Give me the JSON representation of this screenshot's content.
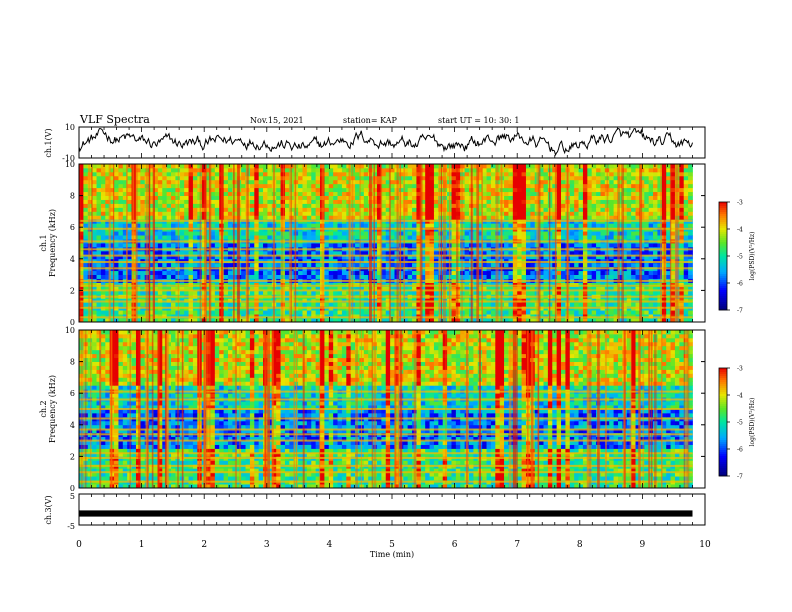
{
  "header": {
    "title": "VLF Spectra",
    "date": "Nov.15, 2021",
    "station": "station= KAP",
    "start": "start  UT  =   10: 30: 1"
  },
  "chart_data": [
    {
      "type": "line",
      "ylabel": "ch.1(V)",
      "ylim": [
        -10,
        10
      ],
      "yticks": [
        "10",
        "-10"
      ],
      "xlim": [
        0,
        10
      ],
      "series": [
        {
          "values_note_free": true,
          "color": "#000000"
        }
      ]
    },
    {
      "type": "heatmap",
      "ylabel_line1": "ch.1",
      "ylabel_line2": "Frequency  (kHz)",
      "ylim": [
        0,
        10
      ],
      "yticks": [
        "0",
        "2",
        "4",
        "6",
        "8",
        "10"
      ],
      "xlim": [
        0,
        9.8
      ],
      "colorbar": {
        "label": "log(PSD)(V²/Hz)",
        "ticks": [
          "-3",
          "-4",
          "-5",
          "-6",
          "-7"
        ],
        "range": [
          -7,
          -3
        ]
      },
      "bands_khz": [
        0.3,
        0.9,
        1.3,
        1.6,
        2.0,
        2.3,
        2.6,
        3.4,
        3.8,
        4.2,
        4.6,
        5.1,
        5.9,
        6.4
      ]
    },
    {
      "type": "heatmap",
      "ylabel_line1": "ch.2",
      "ylabel_line2": "Frequency  (kHz)",
      "ylim": [
        0,
        10
      ],
      "yticks": [
        "0",
        "2",
        "4",
        "6",
        "8",
        "10"
      ],
      "xlim": [
        0,
        9.8
      ],
      "colorbar": {
        "label": "log(PSD)(V²/Hz)",
        "ticks": [
          "-3",
          "-4",
          "-5",
          "-6",
          "-7"
        ],
        "range": [
          -7,
          -3
        ]
      },
      "bands_khz": [
        0.4,
        1.0,
        1.4,
        1.9,
        2.2,
        3.0,
        3.4,
        3.7,
        4.4,
        5.0,
        5.6,
        6.1
      ]
    },
    {
      "type": "line",
      "ylabel": "ch.3(V)",
      "ylim": [
        -5,
        5
      ],
      "yticks": [
        "5",
        "-5"
      ],
      "xlim": [
        0,
        10
      ],
      "xlabel": "Time  (min)",
      "xticks": [
        "0",
        "1",
        "2",
        "3",
        "4",
        "5",
        "6",
        "7",
        "8",
        "9",
        "10"
      ],
      "series": [
        {
          "constant_value": -1.3,
          "thickness_v": 1.0,
          "color": "#000000"
        }
      ]
    }
  ]
}
